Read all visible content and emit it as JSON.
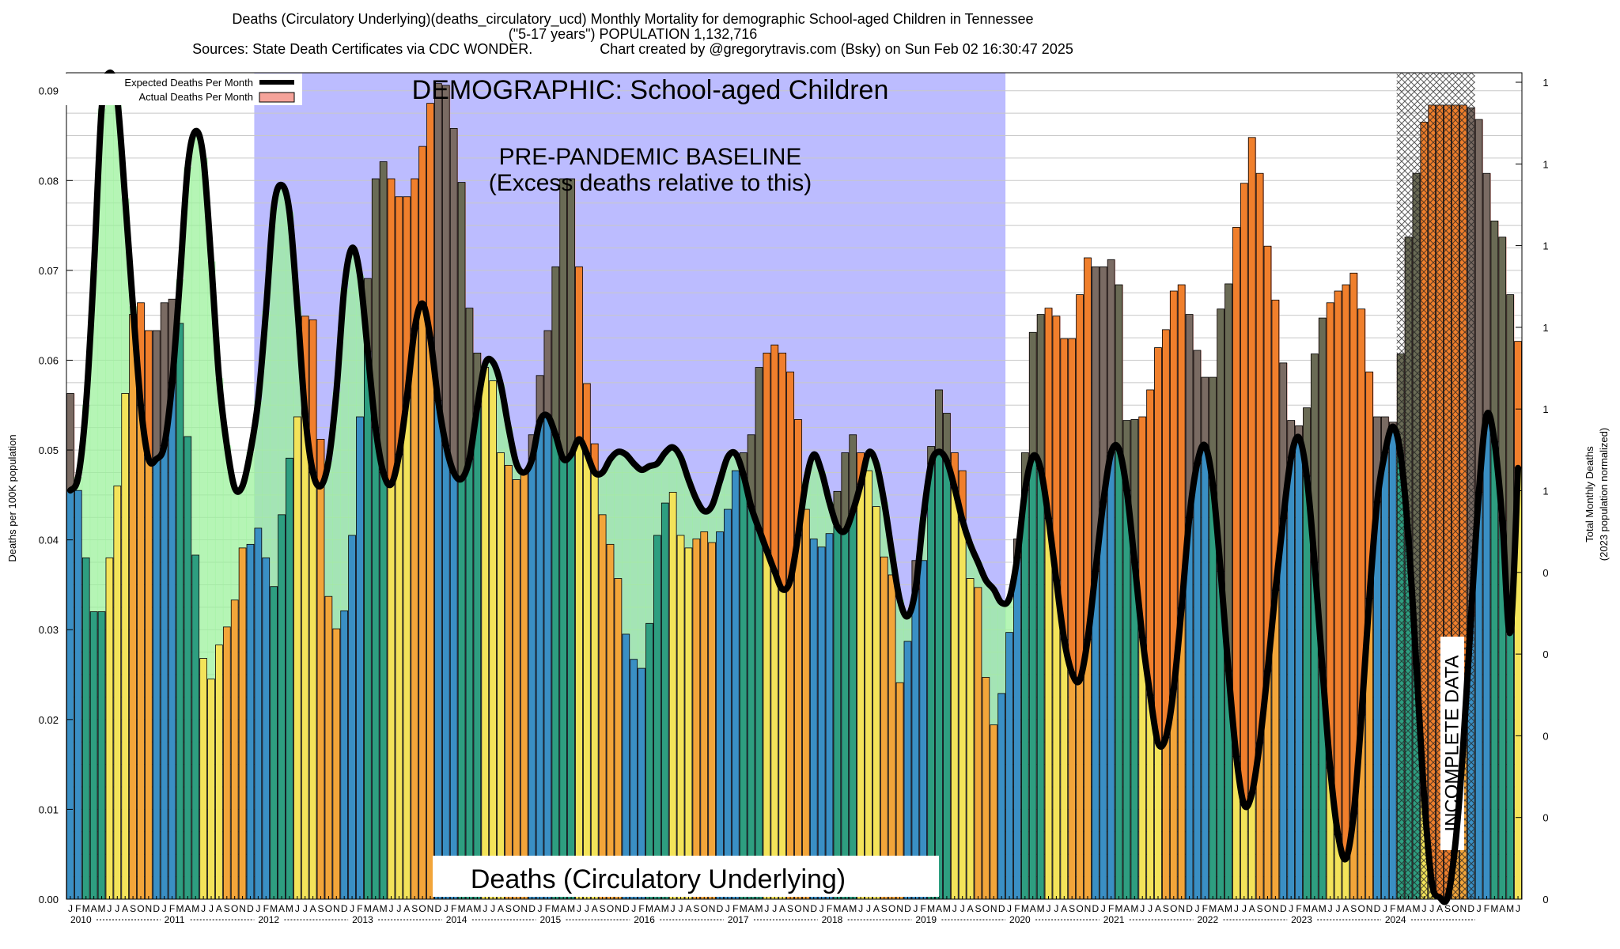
{
  "titles": {
    "line1": "Deaths (Circulatory Underlying)(deaths_circulatory_ucd) Monthly Mortality for demographic School-aged Children in Tennessee",
    "line2": "(\"5-17 years\") POPULATION 1,132,716",
    "line3": "Sources: State Death Certificates via CDC WONDER.                 Chart created by @gregorytravis.com (Bsky) on Sun Feb 02 16:30:47 2025"
  },
  "annotations": {
    "demographic": "DEMOGRAPHIC: School-aged Children",
    "baseline1": "PRE-PANDEMIC BASELINE",
    "baseline2": "(Excess deaths relative to this)",
    "bottom_label": "Deaths (Circulatory Underlying)",
    "incomplete": "INCOMPLETE DATA"
  },
  "colors": {
    "winter": "#3a8fc4",
    "spring": "#2e9e80",
    "summer": "#f3e35a",
    "fall": "#f2a53a",
    "excess": "#f07f2c",
    "baseline_band": "#bcbcff",
    "deficit": "#9cf29c",
    "expected_line": "#000000"
  },
  "chart_data": {
    "type": "bar",
    "title": "Deaths (Circulatory Underlying)(deaths_circulatory_ucd) Monthly Mortality for demographic School-aged Children in Tennessee",
    "ylabel": "Deaths per 100K population",
    "y2label_1": "Total Monthly Deaths",
    "y2label_2": "(2023 population normalized)",
    "ylim": [
      0,
      0.092
    ],
    "yticks": [
      "0.00",
      "0.01",
      "0.02",
      "0.03",
      "0.04",
      "0.05",
      "0.06",
      "0.07",
      "0.08",
      "0.09"
    ],
    "y2ticks": [
      "0",
      "0",
      "0",
      "0",
      "0",
      "1",
      "1",
      "1",
      "1",
      "1",
      "1"
    ],
    "month_letters": [
      "J",
      "F",
      "M",
      "A",
      "M",
      "J",
      "J",
      "A",
      "S",
      "O",
      "N",
      "D"
    ],
    "years": [
      "2010",
      "2011",
      "2012",
      "2013",
      "2014",
      "2015",
      "2016",
      "2017",
      "2018",
      "2019",
      "2020",
      "2021",
      "2022",
      "2023",
      "2024"
    ],
    "baseline_period": {
      "start": "2012-01",
      "end": "2019-12"
    },
    "incomplete_period": {
      "start": "2024-03",
      "end": "2024-12"
    },
    "legend": [
      "Expected Deaths Per Month",
      "Actual Deaths Per Month"
    ],
    "legend_position": "top-left",
    "grid": true,
    "series": [
      {
        "name": "Actual Deaths Per Month",
        "values": [
          0.0563,
          0.0455,
          0.038,
          0.032,
          0.032,
          0.038,
          0.046,
          0.0563,
          0.0651,
          0.0664,
          0.0633,
          0.0633,
          0.0664,
          0.0668,
          0.0641,
          0.0515,
          0.0383,
          0.0268,
          0.0245,
          0.0283,
          0.0303,
          0.0333,
          0.0391,
          0.0395,
          0.0413,
          0.038,
          0.0348,
          0.0428,
          0.0491,
          0.0537,
          0.0649,
          0.0645,
          0.0512,
          0.0337,
          0.0301,
          0.0321,
          0.0405,
          0.0537,
          0.0691,
          0.0802,
          0.0821,
          0.0802,
          0.0782,
          0.0782,
          0.0802,
          0.0838,
          0.0886,
          0.0908,
          0.0906,
          0.0858,
          0.0798,
          0.0658,
          0.0608,
          0.0592,
          0.0577,
          0.0497,
          0.0483,
          0.0467,
          0.0477,
          0.0517,
          0.0583,
          0.0633,
          0.0704,
          0.0802,
          0.0802,
          0.0704,
          0.0574,
          0.0507,
          0.0428,
          0.0395,
          0.0357,
          0.0295,
          0.0267,
          0.0257,
          0.0307,
          0.0405,
          0.0441,
          0.0453,
          0.0405,
          0.0391,
          0.0401,
          0.0409,
          0.0397,
          0.0409,
          0.0434,
          0.0477,
          0.0497,
          0.0517,
          0.0592,
          0.0608,
          0.0617,
          0.0608,
          0.0587,
          0.0534,
          0.0434,
          0.0401,
          0.0392,
          0.0407,
          0.0454,
          0.0497,
          0.0517,
          0.0497,
          0.0477,
          0.0437,
          0.0381,
          0.0361,
          0.0241,
          0.0287,
          0.0377,
          0.0377,
          0.0504,
          0.0567,
          0.0541,
          0.0497,
          0.0477,
          0.0357,
          0.0347,
          0.0247,
          0.0194,
          0.0229,
          0.0297,
          0.0401,
          0.0497,
          0.0631,
          0.0651,
          0.0658,
          0.0649,
          0.0624,
          0.0624,
          0.0673,
          0.0714,
          0.0704,
          0.0704,
          0.0712,
          0.0684,
          0.0533,
          0.0534,
          0.0537,
          0.0567,
          0.0614,
          0.0634,
          0.0677,
          0.0684,
          0.0651,
          0.0611,
          0.0581,
          0.0581,
          0.0657,
          0.0685,
          0.0748,
          0.0797,
          0.0848,
          0.0808,
          0.0727,
          0.0667,
          0.0597,
          0.0533,
          0.0527,
          0.0547,
          0.0607,
          0.0647,
          0.0664,
          0.0677,
          0.0684,
          0.0697,
          0.0657,
          0.0587,
          0.0537,
          0.0537,
          0.0531,
          0.0607,
          0.0737,
          0.0808,
          0.0865,
          0.0884,
          0.0884,
          0.0884,
          0.0884,
          0.0884,
          0.0881,
          0.0868,
          0.0808,
          0.0755,
          0.0737,
          0.0673,
          0.0621
        ]
      },
      {
        "name": "Expected Deaths Per Month",
        "values": [
          0.0455,
          0.047,
          0.055,
          0.07,
          0.088,
          0.092,
          0.089,
          0.078,
          0.066,
          0.055,
          0.049,
          0.049,
          0.0505,
          0.0575,
          0.069,
          0.0815,
          0.0855,
          0.0825,
          0.071,
          0.058,
          0.0505,
          0.0458,
          0.046,
          0.0498,
          0.0555,
          0.0655,
          0.077,
          0.0795,
          0.0765,
          0.066,
          0.054,
          0.0475,
          0.046,
          0.0488,
          0.0565,
          0.068,
          0.0725,
          0.0695,
          0.061,
          0.0525,
          0.0475,
          0.0462,
          0.0495,
          0.0558,
          0.0635,
          0.0663,
          0.0625,
          0.0555,
          0.0505,
          0.0475,
          0.0468,
          0.049,
          0.0548,
          0.0596,
          0.0598,
          0.0573,
          0.0525,
          0.0485,
          0.0475,
          0.049,
          0.0532,
          0.0538,
          0.0517,
          0.049,
          0.0495,
          0.0512,
          0.0496,
          0.0475,
          0.0475,
          0.049,
          0.0498,
          0.0495,
          0.0485,
          0.0478,
          0.0482,
          0.0485,
          0.0497,
          0.0503,
          0.0492,
          0.0467,
          0.0445,
          0.0432,
          0.0438,
          0.0465,
          0.0492,
          0.0496,
          0.0473,
          0.0437,
          0.0412,
          0.0388,
          0.0365,
          0.0345,
          0.0355,
          0.0405,
          0.0465,
          0.0495,
          0.0476,
          0.0442,
          0.0415,
          0.041,
          0.0432,
          0.0462,
          0.0497,
          0.0485,
          0.0442,
          0.0385,
          0.0333,
          0.0315,
          0.0345,
          0.0425,
          0.0485,
          0.0498,
          0.0488,
          0.0458,
          0.0422,
          0.0395,
          0.0375,
          0.0355,
          0.0345,
          0.033,
          0.0335,
          0.038,
          0.0455,
          0.0493,
          0.0479,
          0.0424,
          0.0355,
          0.0289,
          0.0252,
          0.0244,
          0.0289,
          0.0365,
          0.0442,
          0.0497,
          0.0501,
          0.0455,
          0.0375,
          0.0291,
          0.0227,
          0.0174,
          0.018,
          0.0234,
          0.0324,
          0.0425,
          0.0485,
          0.0505,
          0.0461,
          0.0365,
          0.0254,
          0.0159,
          0.0105,
          0.0118,
          0.0174,
          0.0254,
          0.0344,
          0.0424,
          0.0492,
          0.0514,
          0.0471,
          0.0375,
          0.0258,
          0.0146,
          0.0072,
          0.0045,
          0.0095,
          0.0205,
          0.0335,
          0.0442,
          0.0497,
          0.0526,
          0.0495,
          0.0402,
          0.0262,
          0.0115,
          0.0018,
          0.0002,
          0.0002,
          0.0062,
          0.0171,
          0.0315,
          0.0453,
          0.0539,
          0.0509,
          0.0421,
          0.0297,
          0.048
        ]
      }
    ]
  }
}
